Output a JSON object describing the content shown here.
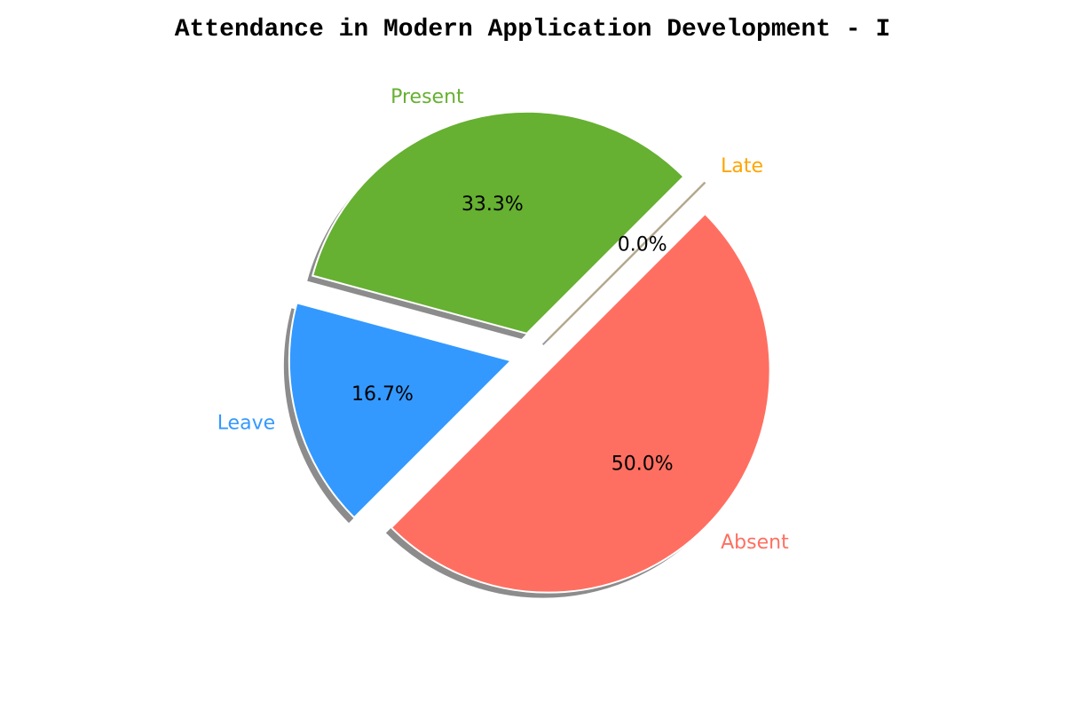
{
  "chart_data": {
    "type": "pie",
    "title": "Attendance in Modern Application Development - I",
    "slices": [
      {
        "label": "Present",
        "value": 33.3,
        "pct_label": "33.3%",
        "color": "#66b032"
      },
      {
        "label": "Leave",
        "value": 16.7,
        "pct_label": "16.7%",
        "color": "#3399ff"
      },
      {
        "label": "Absent",
        "value": 50.0,
        "pct_label": "50.0%",
        "color": "#ff6f61"
      },
      {
        "label": "Late",
        "value": 0.0,
        "pct_label": "0.0%",
        "color": "#ffa500"
      }
    ],
    "shadow": true,
    "exploded": true
  }
}
